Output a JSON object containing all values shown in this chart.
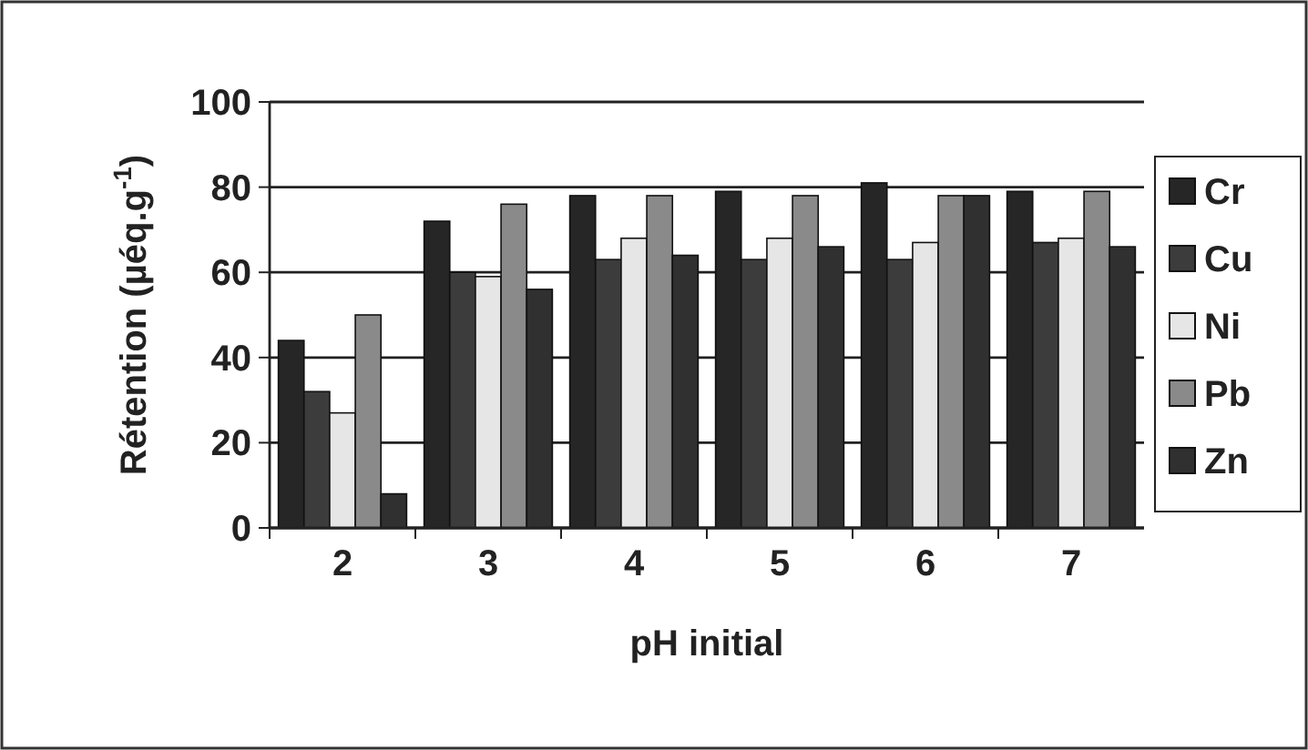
{
  "chart_data": {
    "type": "bar",
    "xlabel": "pH initial",
    "ylabel": "Rétention (µéq.g$^{-1}$)",
    "categories": [
      "2",
      "3",
      "4",
      "5",
      "6",
      "7"
    ],
    "series": [
      {
        "name": "Cr",
        "color": "#262626",
        "values": [
          44,
          72,
          78,
          79,
          81,
          79
        ]
      },
      {
        "name": "Cu",
        "color": "#3c3c3c",
        "values": [
          32,
          60,
          63,
          63,
          63,
          67
        ]
      },
      {
        "name": "Ni",
        "color": "#e6e6e6",
        "values": [
          27,
          59,
          68,
          68,
          67,
          68
        ]
      },
      {
        "name": "Pb",
        "color": "#8a8a8a",
        "values": [
          50,
          76,
          78,
          78,
          78,
          79
        ]
      },
      {
        "name": "Zn",
        "color": "#303030",
        "values": [
          8,
          56,
          64,
          66,
          78,
          66
        ]
      }
    ],
    "ylim": [
      0,
      100
    ],
    "yticks": [
      0,
      20,
      40,
      60,
      80,
      100
    ],
    "grid": "y",
    "legend": "right"
  }
}
